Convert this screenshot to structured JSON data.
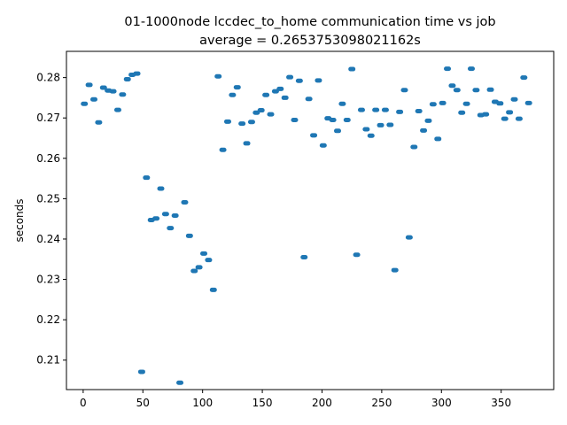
{
  "chart_data": {
    "type": "scatter",
    "title": "01-1000node lccdec_to_home communication time vs job",
    "subtitle": "average = 0.2653753098021162s",
    "xlabel": "",
    "ylabel": "seconds",
    "xlim": [
      -14,
      394
    ],
    "ylim": [
      0.2027,
      0.2865
    ],
    "xticks": [
      0,
      50,
      100,
      150,
      200,
      250,
      300,
      350
    ],
    "yticks": [
      0.21,
      0.22,
      0.23,
      0.24,
      0.25,
      0.26,
      0.27,
      0.28
    ],
    "ytick_labels": [
      "0.21",
      "0.22",
      "0.23",
      "0.24",
      "0.25",
      "0.26",
      "0.27",
      "0.28"
    ],
    "grid": false,
    "marker_color": "#1f77b4",
    "points": [
      [
        1,
        0.2735
      ],
      [
        5,
        0.2782
      ],
      [
        9,
        0.2746
      ],
      [
        13,
        0.2689
      ],
      [
        17,
        0.2775
      ],
      [
        21,
        0.2768
      ],
      [
        25,
        0.2766
      ],
      [
        29,
        0.272
      ],
      [
        33,
        0.2758
      ],
      [
        37,
        0.2796
      ],
      [
        41,
        0.2807
      ],
      [
        45,
        0.281
      ],
      [
        49,
        0.2071
      ],
      [
        53,
        0.2552
      ],
      [
        57,
        0.2447
      ],
      [
        61,
        0.2451
      ],
      [
        65,
        0.2525
      ],
      [
        69,
        0.2462
      ],
      [
        73,
        0.2427
      ],
      [
        77,
        0.2458
      ],
      [
        81,
        0.2044
      ],
      [
        85,
        0.2491
      ],
      [
        89,
        0.2408
      ],
      [
        93,
        0.2321
      ],
      [
        97,
        0.233
      ],
      [
        101,
        0.2364
      ],
      [
        105,
        0.2348
      ],
      [
        109,
        0.2274
      ],
      [
        113,
        0.2803
      ],
      [
        117,
        0.2621
      ],
      [
        121,
        0.2691
      ],
      [
        125,
        0.2757
      ],
      [
        129,
        0.2776
      ],
      [
        133,
        0.2686
      ],
      [
        137,
        0.2637
      ],
      [
        141,
        0.269
      ],
      [
        145,
        0.2713
      ],
      [
        149,
        0.2719
      ],
      [
        153,
        0.2757
      ],
      [
        157,
        0.2709
      ],
      [
        161,
        0.2766
      ],
      [
        165,
        0.2772
      ],
      [
        169,
        0.275
      ],
      [
        173,
        0.2801
      ],
      [
        177,
        0.2695
      ],
      [
        181,
        0.2792
      ],
      [
        185,
        0.2355
      ],
      [
        189,
        0.2747
      ],
      [
        193,
        0.2657
      ],
      [
        197,
        0.2793
      ],
      [
        201,
        0.2632
      ],
      [
        205,
        0.2699
      ],
      [
        209,
        0.2695
      ],
      [
        213,
        0.2668
      ],
      [
        217,
        0.2735
      ],
      [
        221,
        0.2695
      ],
      [
        225,
        0.2821
      ],
      [
        229,
        0.2361
      ],
      [
        233,
        0.272
      ],
      [
        237,
        0.2672
      ],
      [
        241,
        0.2656
      ],
      [
        245,
        0.272
      ],
      [
        249,
        0.2682
      ],
      [
        253,
        0.272
      ],
      [
        257,
        0.2683
      ],
      [
        261,
        0.2323
      ],
      [
        265,
        0.2715
      ],
      [
        269,
        0.2769
      ],
      [
        273,
        0.2404
      ],
      [
        277,
        0.2628
      ],
      [
        281,
        0.2717
      ],
      [
        285,
        0.2669
      ],
      [
        289,
        0.2693
      ],
      [
        293,
        0.2734
      ],
      [
        297,
        0.2648
      ],
      [
        301,
        0.2737
      ],
      [
        305,
        0.2822
      ],
      [
        309,
        0.278
      ],
      [
        313,
        0.2769
      ],
      [
        317,
        0.2713
      ],
      [
        321,
        0.2735
      ],
      [
        325,
        0.2822
      ],
      [
        329,
        0.2769
      ],
      [
        333,
        0.2707
      ],
      [
        337,
        0.2709
      ],
      [
        341,
        0.277
      ],
      [
        345,
        0.274
      ],
      [
        349,
        0.2736
      ],
      [
        353,
        0.2698
      ],
      [
        357,
        0.2714
      ],
      [
        361,
        0.2746
      ],
      [
        365,
        0.2698
      ],
      [
        369,
        0.28
      ],
      [
        373,
        0.2737
      ]
    ]
  }
}
